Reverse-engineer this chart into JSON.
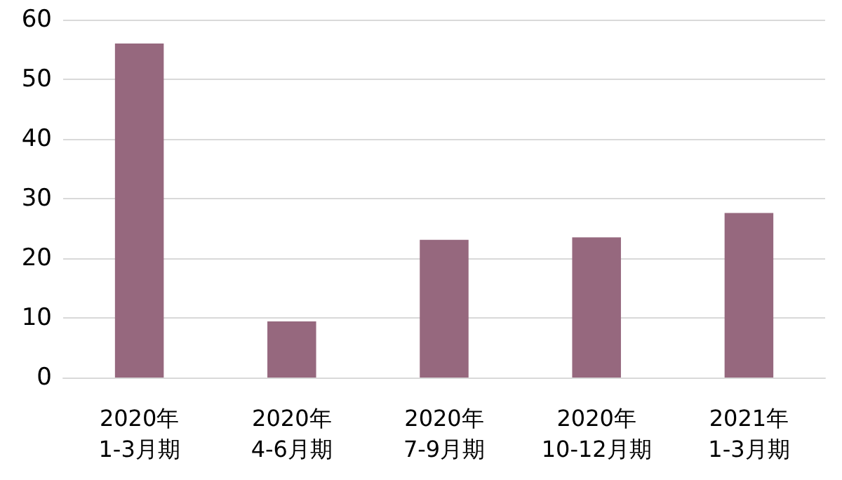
{
  "chart_data": {
    "type": "bar",
    "categories": [
      "2020年\n1-3月期",
      "2020年\n4-6月期",
      "2020年\n7-9月期",
      "2020年\n10-12月期",
      "2021年\n1-3月期"
    ],
    "values": [
      56,
      9.4,
      23.1,
      23.5,
      27.6
    ],
    "color": "#96687e",
    "ylim": [
      0,
      60
    ],
    "yticks": [
      0,
      10,
      20,
      30,
      40,
      50,
      60
    ],
    "grid": "y"
  }
}
